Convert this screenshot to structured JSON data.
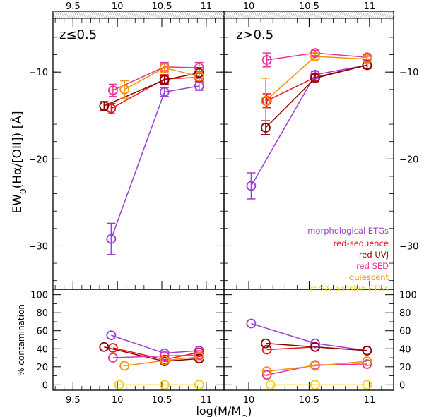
{
  "chart_data": {
    "type": "scatter",
    "xlabel": "log(M/M",
    "xlabel_sub": "⊙",
    "xlabel_end": ")",
    "x_ticks": [
      "9.5",
      "10",
      "10.5",
      "11"
    ],
    "series": [
      {
        "name": "morphological ETGs",
        "color": "#9b3fd4"
      },
      {
        "name": "red-sequence",
        "color": "#e8141e"
      },
      {
        "name": "red UVJ",
        "color": "#8b0000"
      },
      {
        "name": "red SED",
        "color": "#e8369a"
      },
      {
        "name": "quiescent",
        "color": "#f5920f"
      },
      {
        "name": "red & passive ETGs",
        "color": "#f2d016"
      }
    ],
    "top_panels": [
      {
        "label": "z≤0.5",
        "xlim": [
          9.3,
          11.2
        ],
        "ylim": [
          -35,
          -3
        ],
        "y_ticks": [
          "−10",
          "−20",
          "−30"
        ],
        "ylabel": "EW",
        "ylabel_sub": "0",
        "ylabel_rest": "(Hα/[OII]) [Å]",
        "data": [
          {
            "series": 0,
            "x": [
              9.93,
              10.53,
              10.92
            ],
            "y": [
              -29.2,
              -12.3,
              -11.6
            ],
            "err": [
              1.8,
              0.5,
              0.5
            ]
          },
          {
            "series": 1,
            "x": [
              9.93,
              10.53,
              10.92
            ],
            "y": [
              -14.2,
              -10.8,
              -10.6
            ],
            "err": [
              0.6,
              0.5,
              0.5
            ]
          },
          {
            "series": 2,
            "x": [
              9.85,
              10.53,
              10.92
            ],
            "y": [
              -13.9,
              -10.9,
              -10.1
            ],
            "err": [
              0.5,
              0.5,
              0.6
            ]
          },
          {
            "series": 3,
            "x": [
              9.95,
              10.53,
              10.92
            ],
            "y": [
              -12.1,
              -9.4,
              -9.5
            ],
            "err": [
              0.7,
              0.5,
              0.6
            ]
          },
          {
            "series": 4,
            "x": [
              10.08,
              10.53,
              10.92
            ],
            "y": [
              -12.0,
              -9.5,
              -10.5
            ],
            "err": [
              1.0,
              0.5,
              0.5
            ]
          }
        ]
      },
      {
        "label": "z>0.5",
        "xlim": [
          9.8,
          11.2
        ],
        "ylim": [
          -35,
          -3
        ],
        "y_ticks": [
          "−10",
          "−20",
          "−30"
        ],
        "data": [
          {
            "series": 0,
            "x": [
              10.02,
              10.55,
              10.98
            ],
            "y": [
              -23.1,
              -10.3,
              -9.2
            ],
            "err": [
              1.5,
              0.4,
              0.4
            ]
          },
          {
            "series": 1,
            "x": [
              10.15,
              10.55,
              10.98
            ],
            "y": [
              -13.3,
              -10.6,
              -9.2
            ],
            "err": [
              0.8,
              0.4,
              0.4
            ]
          },
          {
            "series": 2,
            "x": [
              10.14,
              10.55,
              10.98
            ],
            "y": [
              -16.4,
              -10.7,
              -9.2
            ],
            "err": [
              0.8,
              0.4,
              0.4
            ]
          },
          {
            "series": 3,
            "x": [
              10.15,
              10.55,
              10.98
            ],
            "y": [
              -8.6,
              -7.8,
              -8.3
            ],
            "err": [
              0.8,
              0.3,
              0.3
            ]
          },
          {
            "series": 4,
            "x": [
              10.14,
              10.55,
              10.98
            ],
            "y": [
              -13.3,
              -8.2,
              -8.5
            ],
            "err": [
              2.6,
              0.3,
              0.3
            ]
          }
        ]
      }
    ],
    "bottom_panels": [
      {
        "ylim": [
          -5,
          105
        ],
        "y_ticks": [
          "0",
          "20",
          "40",
          "60",
          "80",
          "100"
        ],
        "ylabel": "% contamination",
        "data": [
          {
            "series": 0,
            "x": [
              9.93,
              10.53,
              10.92
            ],
            "y": [
              55,
              35,
              38
            ]
          },
          {
            "series": 1,
            "x": [
              9.95,
              10.53,
              10.92
            ],
            "y": [
              41,
              28,
              36
            ]
          },
          {
            "series": 2,
            "x": [
              9.85,
              10.53,
              10.92
            ],
            "y": [
              42,
              26,
              29
            ]
          },
          {
            "series": 3,
            "x": [
              9.95,
              10.53,
              10.92
            ],
            "y": [
              30,
              32,
              33
            ]
          },
          {
            "series": 4,
            "x": [
              10.08,
              10.53,
              10.92
            ],
            "y": [
              21,
              27,
              31
            ]
          },
          {
            "series": 5,
            "x": [
              10.02,
              10.53,
              10.92
            ],
            "y": [
              0,
              0,
              0
            ]
          }
        ]
      },
      {
        "ylim": [
          -5,
          105
        ],
        "y_ticks": [
          "0",
          "20",
          "40",
          "60",
          "80",
          "100"
        ],
        "data": [
          {
            "series": 0,
            "x": [
              10.02,
              10.55,
              10.98
            ],
            "y": [
              68,
              46,
              38
            ]
          },
          {
            "series": 1,
            "x": [
              10.15,
              10.55,
              10.98
            ],
            "y": [
              39,
              42,
              38
            ]
          },
          {
            "series": 2,
            "x": [
              10.14,
              10.55,
              10.98
            ],
            "y": [
              46,
              42,
              38
            ]
          },
          {
            "series": 3,
            "x": [
              10.15,
              10.55,
              10.98
            ],
            "y": [
              11,
              22,
              23
            ]
          },
          {
            "series": 4,
            "x": [
              10.15,
              10.55,
              10.98
            ],
            "y": [
              15,
              21,
              26
            ]
          },
          {
            "series": 5,
            "x": [
              10.18,
              10.55,
              10.98
            ],
            "y": [
              0,
              0,
              0
            ]
          }
        ]
      }
    ]
  }
}
